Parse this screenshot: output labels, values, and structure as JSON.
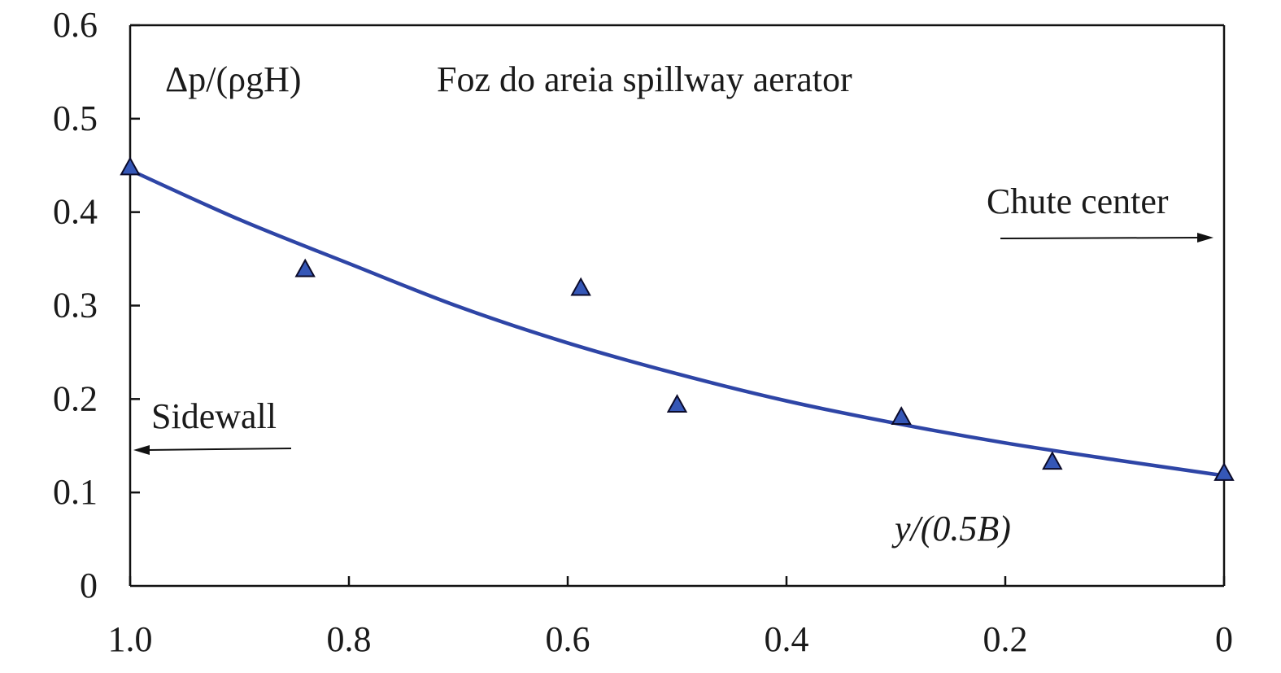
{
  "chart_data": {
    "type": "scatter",
    "title": "Foz do areia spillway aerator",
    "xlabel": "y/(0.5B)",
    "ylabel": "Δp/(ρgH)",
    "xlim": [
      1.0,
      0
    ],
    "ylim": [
      0,
      0.6
    ],
    "x_ticks": [
      "1.0",
      "0.8",
      "0.6",
      "0.4",
      "0.2",
      "0"
    ],
    "y_ticks": [
      "0",
      "0.1",
      "0.2",
      "0.3",
      "0.4",
      "0.5",
      "0.6"
    ],
    "x_tick_values": [
      1.0,
      0.8,
      0.6,
      0.4,
      0.2,
      0
    ],
    "y_tick_values": [
      0,
      0.1,
      0.2,
      0.3,
      0.4,
      0.5,
      0.6
    ],
    "grid": false,
    "series": [
      {
        "marker": "triangle",
        "color": "#3557b7",
        "x": [
          1.0,
          0.84,
          0.588,
          0.5,
          0.295,
          0.157,
          0.0
        ],
        "y": [
          0.448,
          0.339,
          0.319,
          0.194,
          0.181,
          0.133,
          0.121
        ]
      }
    ],
    "fit_curve": {
      "color": "#2e45a6",
      "x": [
        1.0,
        0.9,
        0.8,
        0.7,
        0.6,
        0.5,
        0.4,
        0.3,
        0.2,
        0.1,
        0.0
      ],
      "y": [
        0.445,
        0.392,
        0.345,
        0.299,
        0.26,
        0.227,
        0.198,
        0.174,
        0.153,
        0.135,
        0.118
      ]
    },
    "annotations": {
      "chute_center": "Chute center",
      "sidewall": "Sidewall"
    }
  }
}
